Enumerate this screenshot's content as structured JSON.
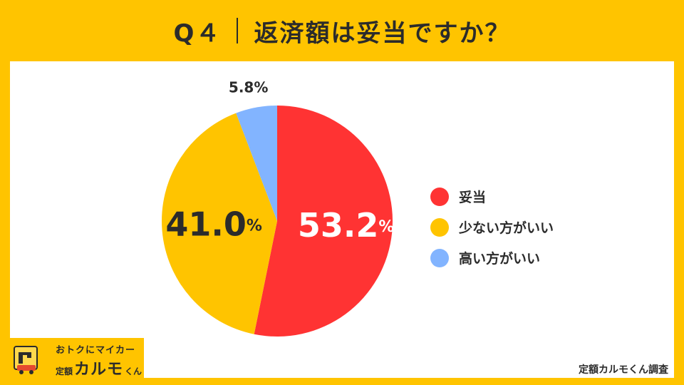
{
  "title": {
    "q": "Q４",
    "text": "返済額は妥当ですか？"
  },
  "chart_data": {
    "type": "pie",
    "title": "",
    "slices": [
      {
        "label": "妥当",
        "value": 53.2,
        "display": "53.2",
        "unit": "%",
        "color": "#FF3333"
      },
      {
        "label": "少ない方がいい",
        "value": 41.0,
        "display": "41.0",
        "unit": "%",
        "color": "#FFC400"
      },
      {
        "label": "高い方がいい",
        "value": 5.8,
        "display": "5.8",
        "unit": "%",
        "color": "#82B4FF"
      }
    ],
    "legend_position": "right"
  },
  "logo": {
    "tagline": "おトクにマイカー",
    "brand_pre": "定額",
    "brand_main": "カルモ",
    "brand_post": "くん"
  },
  "credit": "定額カルモくん調査"
}
